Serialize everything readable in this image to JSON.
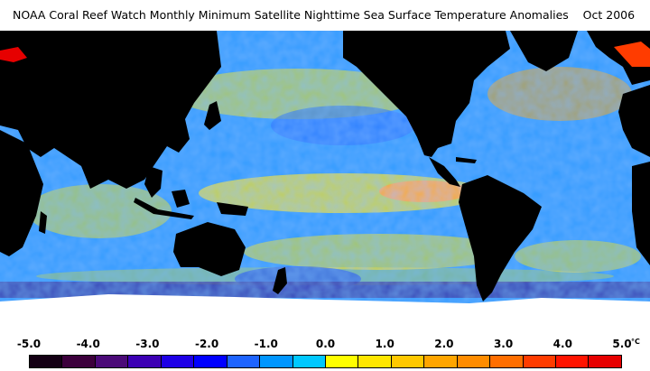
{
  "title": "NOAA Coral Reef Watch Monthly Minimum Satellite Nighttime Sea Surface Temperature Anomalies    Oct 2006",
  "scale": {
    "ticks": [
      "-5.0",
      "-4.0",
      "-3.0",
      "-2.0",
      "-1.0",
      "0.0",
      "1.0",
      "2.0",
      "3.0",
      "4.0",
      "5.0"
    ],
    "unit": "°C",
    "colors": [
      "#140014",
      "#3c003c",
      "#4b0a78",
      "#3c00b4",
      "#1e00e6",
      "#0000ff",
      "#1e64ff",
      "#0096ff",
      "#00c8ff",
      "#ffff00",
      "#ffe600",
      "#ffc800",
      "#ffa500",
      "#ff8c00",
      "#ff6e00",
      "#ff3c00",
      "#ff1400",
      "#e60000"
    ]
  },
  "map": {
    "land_color": "#000000",
    "ice_color": "#ffffff",
    "ocean_colors": [
      "#2a7fff",
      "#33b8ff",
      "#ffe600",
      "#ffa500"
    ]
  }
}
